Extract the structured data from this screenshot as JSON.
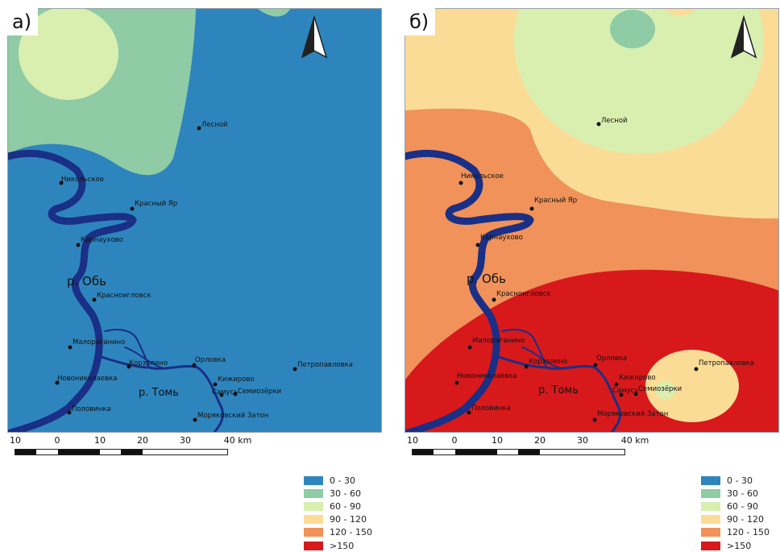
{
  "panels": [
    {
      "letter": "а)",
      "towns": {
        "lesnoy": "Лесной",
        "nikolskoe": "Никольское",
        "krasny_yar": "Красный Яр",
        "karnaukhovo": "Карнаухово",
        "krasnoyglovsk": "Красноигловск",
        "maloe_ragaino": "Малораганино",
        "koryzolino": "Корзолино",
        "orlovka": "Орловка",
        "petropavlovka": "Петропавловка",
        "novonikolaevka": "Новониколаевка",
        "kizhirovo": "Кижирово",
        "samus": "Самусь",
        "semiozerki": "Семиозёрки",
        "polovinka": "Половинка",
        "moryakovsky_zaton": "Моряковский Затон"
      },
      "rivers": {
        "ob": "р. Обь",
        "tom": "р. Томь"
      },
      "scale": {
        "ticks": [
          "10",
          "0",
          "10",
          "20",
          "30",
          "40 km"
        ]
      },
      "legend": [
        "0 - 30",
        "30 - 60",
        "60 - 90",
        "90 - 120",
        "120 - 150",
        ">150"
      ]
    },
    {
      "letter": "б)",
      "towns": {
        "lesnoy": "Лесной",
        "nikolskoe": "Никольское",
        "krasny_yar": "Красный Яр",
        "karnaukhovo": "Карнаухово",
        "krasnoyglovsk": "Красноигловск",
        "maloe_ragaino": "Малораганино",
        "koryzolino": "Корзолино",
        "orlovka": "Орловка",
        "petropavlovka": "Петропавловка",
        "novonikolaevka": "Новониколаевка",
        "kizhirovo": "Кижирово",
        "samus": "Самусь",
        "semiozerki": "Семиозёрки",
        "polovinka": "Половинка",
        "moryakovsky_zaton": "Моряковский Затон"
      },
      "rivers": {
        "ob": "р. Обь",
        "tom": "р. Томь"
      },
      "scale": {
        "ticks": [
          "10",
          "0",
          "10",
          "20",
          "30",
          "40 km"
        ]
      },
      "legend": [
        "0 - 30",
        "30 - 60",
        "60 - 90",
        "90 - 120",
        "120 - 150",
        ">150"
      ]
    }
  ],
  "legend_colors": [
    "#2e85bd",
    "#8fcba5",
    "#d9efb0",
    "#fbdc96",
    "#f0925a",
    "#d7191c"
  ],
  "river_color": "#1a2f86",
  "icons": {
    "north_arrow": "north-arrow-icon",
    "settlement": "settlement-dot-icon"
  }
}
